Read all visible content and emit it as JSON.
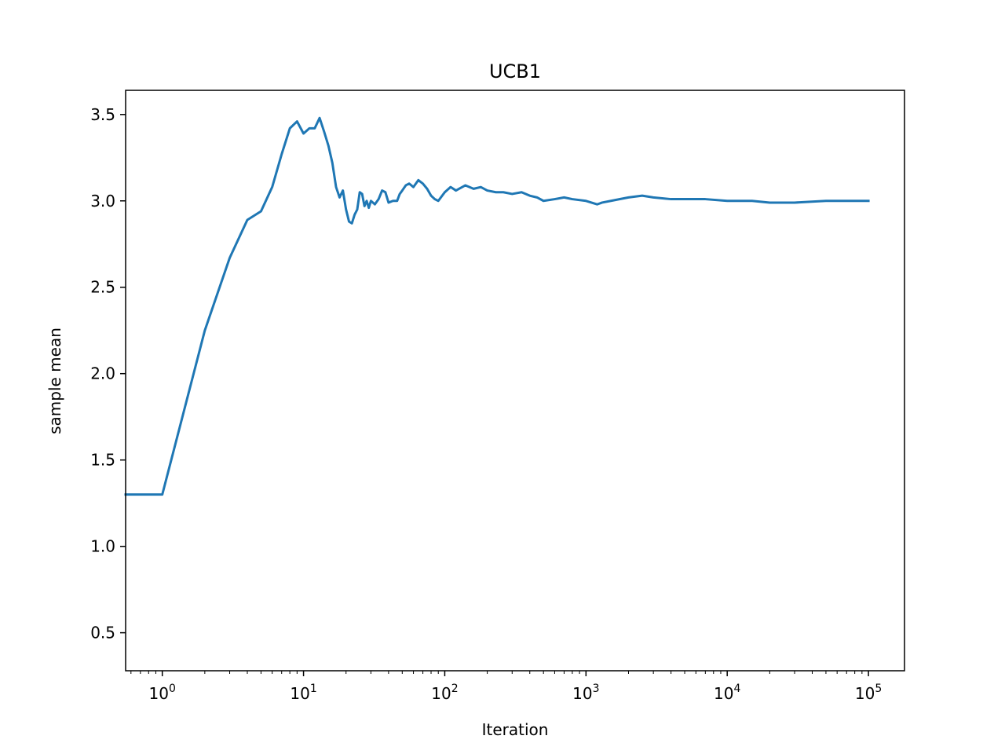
{
  "chart_data": {
    "type": "line",
    "title": "UCB1",
    "xlabel": "Iteration",
    "ylabel": "sample mean",
    "x_scale": "log",
    "xlim": [
      0.55,
      180000
    ],
    "ylim": [
      0.28,
      3.64
    ],
    "x_ticks": [
      {
        "value": 1,
        "base": "10",
        "exp": "0"
      },
      {
        "value": 10,
        "base": "10",
        "exp": "1"
      },
      {
        "value": 100,
        "base": "10",
        "exp": "2"
      },
      {
        "value": 1000,
        "base": "10",
        "exp": "3"
      },
      {
        "value": 10000,
        "base": "10",
        "exp": "4"
      },
      {
        "value": 100000,
        "base": "10",
        "exp": "5"
      }
    ],
    "y_ticks": [
      {
        "value": 0.5,
        "label": "0.5"
      },
      {
        "value": 1.0,
        "label": "1.0"
      },
      {
        "value": 1.5,
        "label": "1.5"
      },
      {
        "value": 2.0,
        "label": "2.0"
      },
      {
        "value": 2.5,
        "label": "2.5"
      },
      {
        "value": 3.0,
        "label": "3.0"
      },
      {
        "value": 3.5,
        "label": "3.5"
      }
    ],
    "grid": false,
    "legend": "none",
    "color": "#1f77b4",
    "series": [
      {
        "x": [
          0.55,
          1,
          2,
          3,
          4,
          5,
          6,
          7,
          8,
          9,
          10,
          11,
          12,
          13,
          14,
          15,
          16,
          17,
          18,
          19,
          20,
          21,
          22,
          23,
          24,
          25,
          26,
          27,
          28,
          29,
          30,
          32,
          34,
          36,
          38,
          40,
          43,
          46,
          48,
          50,
          53,
          56,
          60,
          65,
          70,
          75,
          80,
          85,
          90,
          100,
          110,
          120,
          140,
          160,
          180,
          200,
          230,
          260,
          300,
          350,
          400,
          450,
          500,
          600,
          700,
          800,
          1000,
          1200,
          1300,
          1500,
          2000,
          2500,
          3000,
          4000,
          5000,
          7000,
          10000,
          15000,
          20000,
          30000,
          50000,
          70000,
          100000
        ],
        "y": [
          1.3,
          1.3,
          2.25,
          2.67,
          2.89,
          2.94,
          3.08,
          3.27,
          3.42,
          3.46,
          3.39,
          3.42,
          3.42,
          3.48,
          3.4,
          3.32,
          3.22,
          3.08,
          3.02,
          3.06,
          2.95,
          2.88,
          2.87,
          2.92,
          2.95,
          3.05,
          3.04,
          2.97,
          3.0,
          2.96,
          3.0,
          2.98,
          3.01,
          3.06,
          3.05,
          2.99,
          3.0,
          3.0,
          3.04,
          3.06,
          3.09,
          3.1,
          3.08,
          3.12,
          3.1,
          3.07,
          3.03,
          3.01,
          3.0,
          3.05,
          3.08,
          3.06,
          3.09,
          3.07,
          3.08,
          3.06,
          3.05,
          3.05,
          3.04,
          3.05,
          3.03,
          3.02,
          3.0,
          3.01,
          3.02,
          3.01,
          3.0,
          2.98,
          2.99,
          3.0,
          3.02,
          3.03,
          3.02,
          3.01,
          3.01,
          3.01,
          3.0,
          3.0,
          2.99,
          2.99,
          3.0,
          3.0,
          3.0
        ]
      }
    ]
  }
}
